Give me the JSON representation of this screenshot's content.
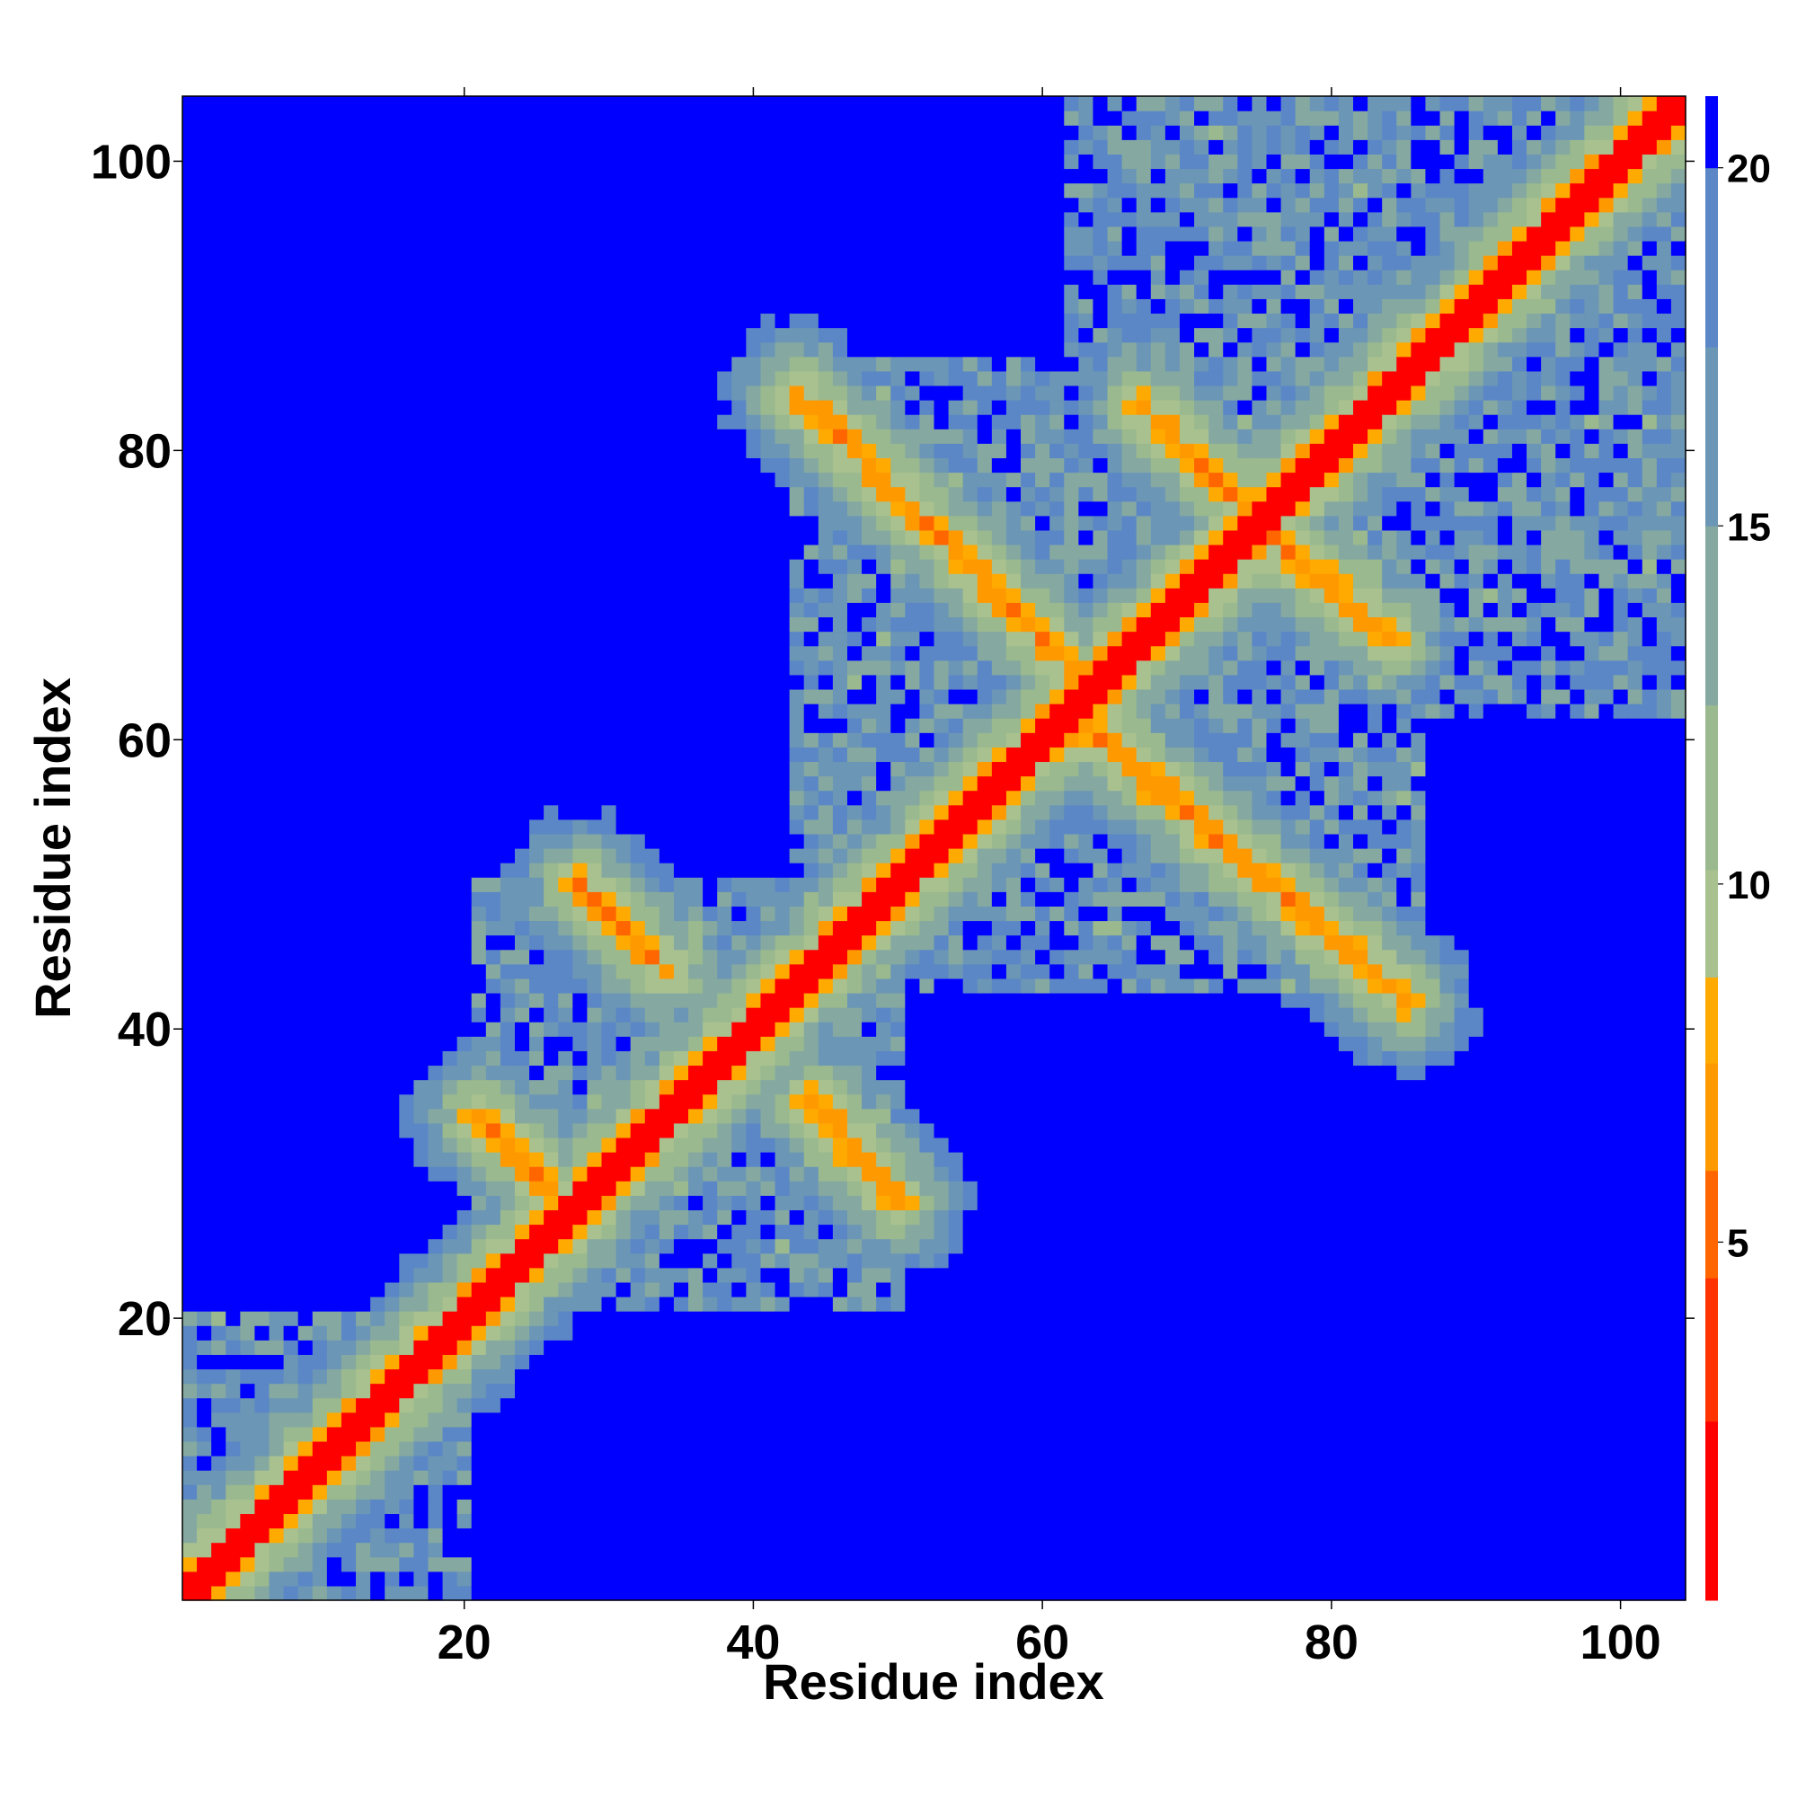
{
  "chart_data": {
    "type": "heatmap",
    "title": "",
    "xlabel": "Residue index",
    "ylabel": "Residue index",
    "n_residues": 104,
    "xlim": [
      1,
      104
    ],
    "ylim": [
      1,
      104
    ],
    "x_ticks": [
      20,
      40,
      60,
      80,
      100
    ],
    "y_ticks": [
      20,
      40,
      60,
      80,
      100
    ],
    "colorbar": {
      "ticks": [
        5,
        10,
        15,
        20
      ],
      "range": [
        0,
        21
      ],
      "bands": [
        {
          "max": 2.5,
          "color": "#ff0000"
        },
        {
          "max": 4.5,
          "color": "#ff3300"
        },
        {
          "max": 6.0,
          "color": "#ff6600"
        },
        {
          "max": 7.5,
          "color": "#ff9900"
        },
        {
          "max": 8.7,
          "color": "#ffaa00"
        },
        {
          "max": 10.2,
          "color": "#a9c18f"
        },
        {
          "max": 12.5,
          "color": "#9ab98e"
        },
        {
          "max": 15.0,
          "color": "#85a9a0"
        },
        {
          "max": 17.5,
          "color": "#6b96b6"
        },
        {
          "max": 20.0,
          "color": "#5b87c6"
        },
        {
          "max": 99,
          "color": "#0000ff"
        }
      ]
    },
    "contacts": [
      {
        "name": "diagonal",
        "from": [
          1,
          1
        ],
        "to": [
          104,
          104
        ]
      },
      {
        "name": "antiparallel-27-20",
        "from": [
          21,
          34
        ],
        "to": [
          27,
          28
        ]
      },
      {
        "name": "antiparallel-28-50",
        "from": [
          28,
          50
        ],
        "to": [
          34,
          44
        ]
      },
      {
        "name": "antiparallel-44-35",
        "from": [
          44,
          35
        ],
        "to": [
          50,
          28
        ]
      },
      {
        "name": "antiparallel-43-84",
        "from": [
          43,
          84
        ],
        "to": [
          64,
          63
        ]
      },
      {
        "name": "antiparallel-67-83",
        "from": [
          67,
          83
        ],
        "to": [
          76,
          74
        ]
      },
      {
        "name": "antiparallel-77-73",
        "from": [
          77,
          73
        ],
        "to": [
          84,
          67
        ]
      },
      {
        "name": "antiparallel-62-62",
        "from": [
          62,
          62
        ],
        "to": [
          85,
          42
        ]
      }
    ]
  }
}
